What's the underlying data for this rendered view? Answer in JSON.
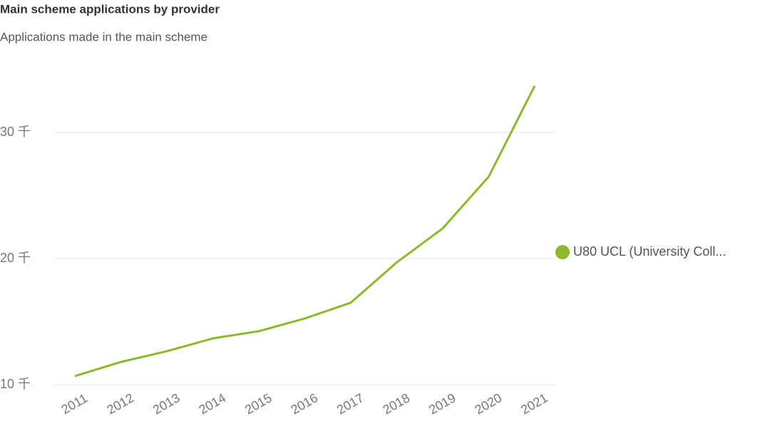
{
  "chart_data": {
    "type": "line",
    "title": "Main scheme applications by provider",
    "subtitle": "Applications made in the main scheme",
    "categories": [
      "2011",
      "2012",
      "2013",
      "2014",
      "2015",
      "2016",
      "2017",
      "2018",
      "2019",
      "2020",
      "2021"
    ],
    "series": [
      {
        "name": "U80 UCL (University Coll...",
        "color": "#8cb92c",
        "values": [
          10680,
          11800,
          12650,
          13670,
          14240,
          15250,
          16500,
          19700,
          22400,
          26500,
          33700
        ]
      }
    ],
    "ylim": [
      10000,
      35000
    ],
    "yticks": [
      {
        "value": 10000,
        "label": "10 千"
      },
      {
        "value": 20000,
        "label": "20 千"
      },
      {
        "value": 30000,
        "label": "30 千"
      }
    ],
    "grid": true,
    "legend": "right"
  }
}
